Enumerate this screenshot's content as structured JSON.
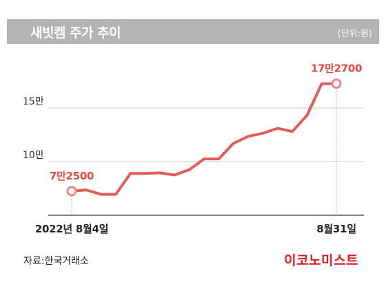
{
  "header": {
    "title": "새빗켐 주가 추이",
    "unit": "(단위:원)"
  },
  "chart_data": {
    "type": "line",
    "title": "새빗켐 주가 추이",
    "unit": "(단위:원)",
    "x_labels": {
      "start": "2022년 8월4일",
      "end": "8월31일"
    },
    "y_ticks": [
      {
        "value": 100000,
        "label": "10만"
      },
      {
        "value": 150000,
        "label": "15만"
      }
    ],
    "ylim": [
      50000,
      200000
    ],
    "grid": true,
    "series": [
      {
        "color": "#e45b57",
        "values": [
          72500,
          73500,
          69500,
          69500,
          89000,
          89000,
          89500,
          87500,
          92500,
          102500,
          102500,
          117000,
          123500,
          126500,
          131000,
          128000,
          143000,
          172500,
          172700
        ]
      }
    ],
    "annotations": [
      {
        "index": 0,
        "label": "7만2500"
      },
      {
        "index": 18,
        "label": "17만2700"
      }
    ]
  },
  "footer": {
    "source": "자료:한국거래소",
    "logo": "이코노미스트"
  },
  "colors": {
    "line": "#e45b57",
    "label": "#e8473f",
    "title_bar": "#b4b4b4",
    "logo": "#e8191e"
  }
}
